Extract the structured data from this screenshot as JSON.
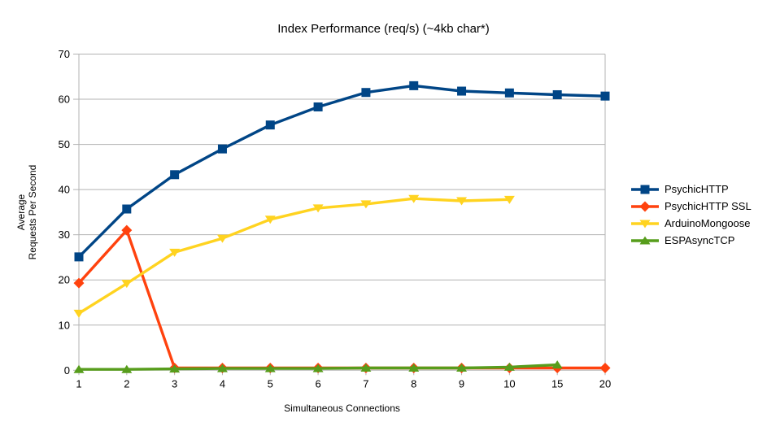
{
  "chart_data": {
    "type": "line",
    "title": "Index Performance (req/s) (~4kb char*)",
    "xlabel": "Simultaneous Connections",
    "ylabel_lines": [
      "Average",
      "Requests Per Second"
    ],
    "categories": [
      "1",
      "2",
      "3",
      "4",
      "5",
      "6",
      "7",
      "8",
      "9",
      "10",
      "15",
      "20"
    ],
    "ylim": [
      0,
      70
    ],
    "ytick_step": 10,
    "grid": "horizontal",
    "legend_position": "right",
    "axis_color": "#b3b3b3",
    "text_color": "#000000",
    "background_color": "#ffffff",
    "series": [
      {
        "name": "PsychicHTTP",
        "color": "#004586",
        "marker": "square",
        "values": [
          25.1,
          35.7,
          43.3,
          49.0,
          54.3,
          58.3,
          61.5,
          63.0,
          61.8,
          61.4,
          61.0,
          60.7
        ]
      },
      {
        "name": "PsychicHTTP SSL",
        "color": "#FF420E",
        "marker": "diamond",
        "values": [
          19.3,
          31.0,
          0.5,
          0.5,
          0.5,
          0.5,
          0.5,
          0.5,
          0.5,
          0.5,
          0.5,
          0.5
        ]
      },
      {
        "name": "ArduinoMongoose",
        "color": "#FFD320",
        "marker": "triangle-down",
        "values": [
          12.6,
          19.2,
          26.1,
          29.2,
          33.4,
          35.9,
          36.8,
          38.0,
          37.5,
          37.8,
          null,
          null
        ]
      },
      {
        "name": "ESPAsyncTCP",
        "color": "#579D1C",
        "marker": "triangle-up",
        "values": [
          0.2,
          0.2,
          0.3,
          0.4,
          0.4,
          0.4,
          0.5,
          0.5,
          0.5,
          0.7,
          1.2,
          null
        ]
      }
    ]
  }
}
